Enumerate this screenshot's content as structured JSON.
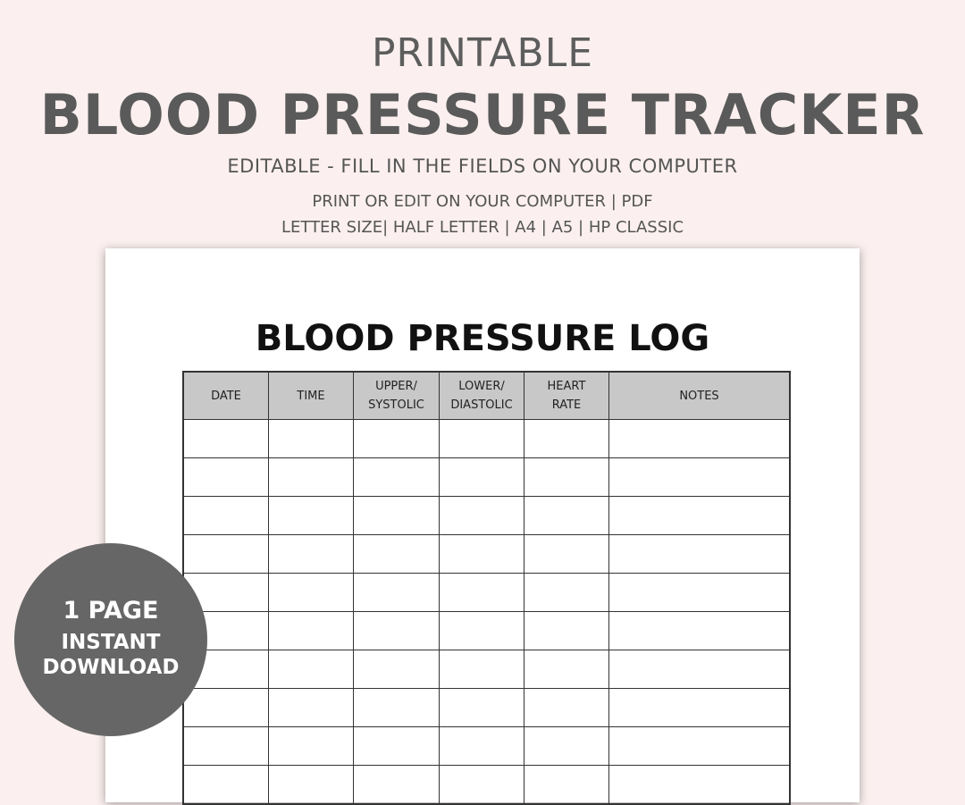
{
  "header": {
    "kicker": "PRINTABLE",
    "title": "BLOOD PRESSURE TRACKER",
    "subtitle": "EDITABLE - FILL IN THE FIELDS ON YOUR COMPUTER",
    "line1": "PRINT OR EDIT ON YOUR COMPUTER | PDF",
    "line2": "LETTER SIZE| HALF LETTER | A4 | A5 | HP CLASSIC"
  },
  "log": {
    "title": "BLOOD PRESSURE LOG",
    "columns": [
      {
        "l1": "DATE",
        "l2": ""
      },
      {
        "l1": "TIME",
        "l2": ""
      },
      {
        "l1": "UPPER/",
        "l2": "SYSTOLIC"
      },
      {
        "l1": "LOWER/",
        "l2": "DIASTOLIC"
      },
      {
        "l1": "HEART",
        "l2": "RATE"
      },
      {
        "l1": "NOTES",
        "l2": ""
      }
    ],
    "visible_rows": 10
  },
  "badge": {
    "l1": "1 PAGE",
    "l2": "INSTANT",
    "l3": "DOWNLOAD"
  },
  "colors": {
    "background": "#fbf0ef",
    "text": "#5a5a5a",
    "header_fill": "#c8c8c8",
    "badge": "#666666"
  }
}
